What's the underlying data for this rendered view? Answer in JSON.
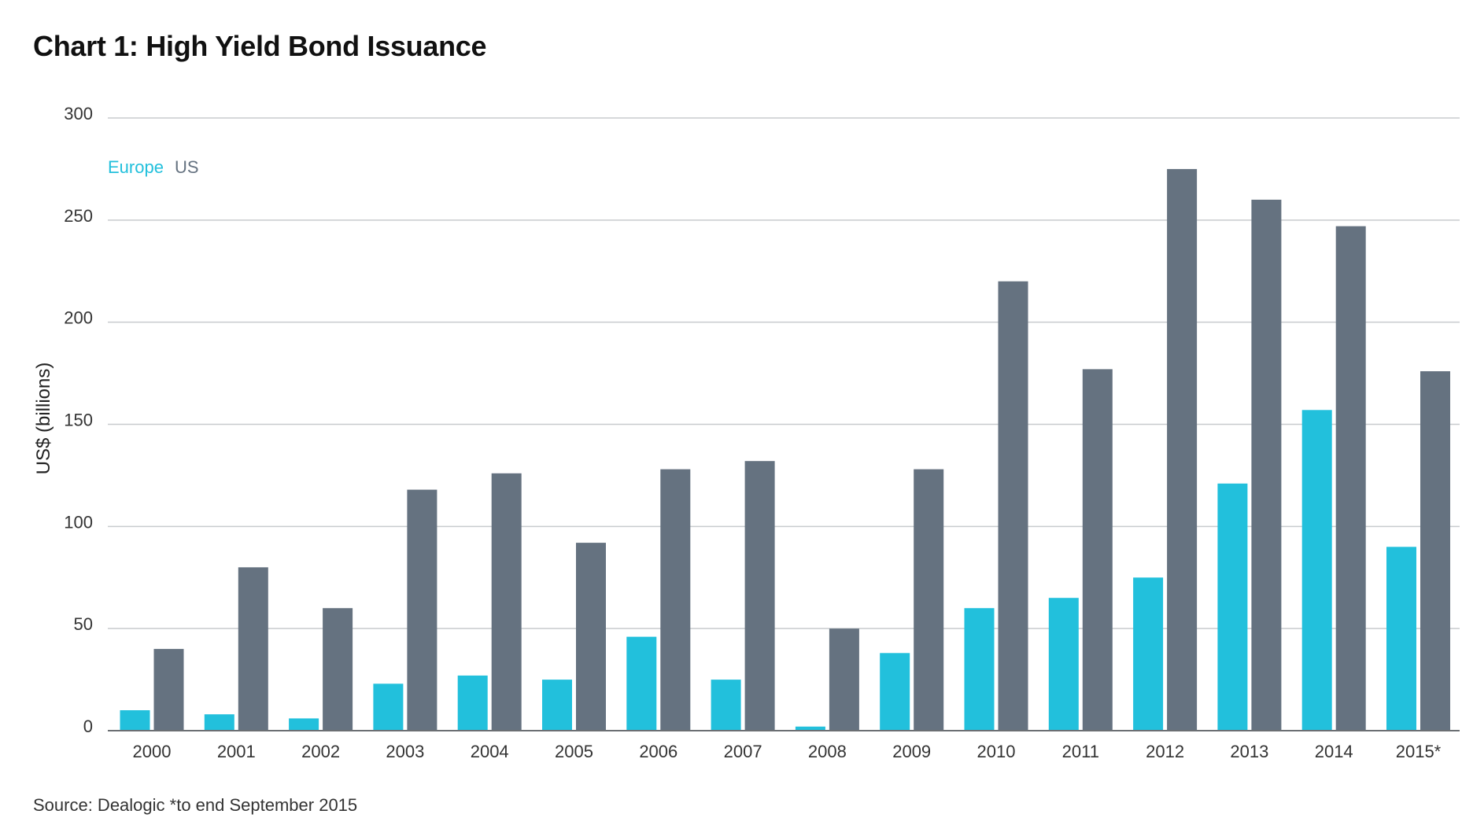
{
  "title": "Chart 1: High Yield Bond Issuance",
  "source": "Source: Dealogic  *to end September 2015",
  "colors": {
    "europe": "#22c0dc",
    "us": "#657280",
    "grid": "#c8cbce",
    "axis": "#6b6f73",
    "tick_text": "#333333"
  },
  "chart_data": {
    "type": "bar",
    "ylabel": "US$ (billions)",
    "xlabel": "",
    "ylim": [
      0,
      300
    ],
    "yticks": [
      0,
      50,
      100,
      150,
      200,
      250,
      300
    ],
    "grid": true,
    "legend_position": "top-left",
    "categories": [
      "2000",
      "2001",
      "2002",
      "2003",
      "2004",
      "2005",
      "2006",
      "2007",
      "2008",
      "2009",
      "2010",
      "2011",
      "2012",
      "2013",
      "2014",
      "2015*"
    ],
    "series": [
      {
        "name": "Europe",
        "color": "#22c0dc",
        "values": [
          10,
          8,
          6,
          23,
          27,
          25,
          46,
          25,
          2,
          38,
          60,
          65,
          75,
          121,
          157,
          90
        ]
      },
      {
        "name": "US",
        "color": "#657280",
        "values": [
          40,
          80,
          60,
          118,
          126,
          92,
          128,
          132,
          50,
          128,
          220,
          177,
          275,
          260,
          247,
          176
        ]
      }
    ]
  }
}
